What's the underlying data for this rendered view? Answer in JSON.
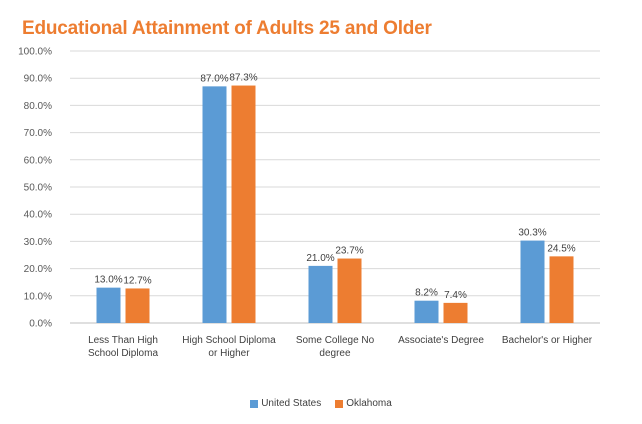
{
  "chart_data": {
    "type": "bar",
    "title": "Educational Attainment of Adults 25 and Older",
    "categories": [
      [
        "Less Than High",
        "School Diploma"
      ],
      [
        "High School Diploma",
        "or Higher"
      ],
      [
        "Some College No",
        "degree"
      ],
      [
        "Associate's Degree"
      ],
      [
        "Bachelor's or Higher"
      ]
    ],
    "series": [
      {
        "name": "United States",
        "color": "#5B9BD5",
        "values": [
          13.0,
          87.0,
          21.0,
          8.2,
          30.3
        ],
        "labels": [
          "13.0%",
          "87.0%",
          "21.0%",
          "8.2%",
          "30.3%"
        ]
      },
      {
        "name": "Oklahoma",
        "color": "#ED7D31",
        "values": [
          12.7,
          87.3,
          23.7,
          7.4,
          24.5
        ],
        "labels": [
          "12.7%",
          "87.3%",
          "23.7%",
          "7.4%",
          "24.5%"
        ]
      }
    ],
    "ylim": [
      0,
      100
    ],
    "yticks": [
      "0.0%",
      "10.0%",
      "20.0%",
      "30.0%",
      "40.0%",
      "50.0%",
      "60.0%",
      "70.0%",
      "80.0%",
      "90.0%",
      "100.0%"
    ],
    "grid": true,
    "legend_position": "bottom"
  }
}
